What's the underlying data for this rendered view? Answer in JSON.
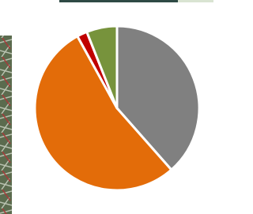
{
  "chart_data": {
    "type": "pie",
    "values": [
      38.5,
      53.5,
      2,
      6
    ],
    "colors": [
      "#808080",
      "#e36c09",
      "#c00000",
      "#77933c"
    ],
    "start_angle": 0,
    "direction": "clockwise"
  }
}
